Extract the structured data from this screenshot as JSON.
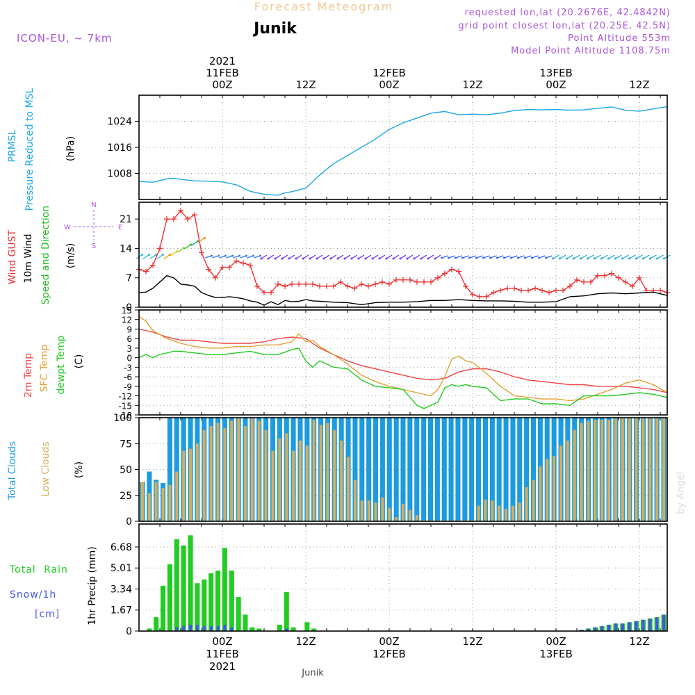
{
  "header": {
    "title": "Forecast Meteogram",
    "location": "Junik",
    "model": "ICON-EU, ~ 7km",
    "requested": "requested lon,lat (20.2676E, 42.4842N)",
    "grid_point": "grid point closest lon,lat (20.25E, 42.5N)",
    "point_altitude": "Point Altitude 553m",
    "model_altitude": "Model Point Altitude 1108.75m",
    "watermark": "by Angel",
    "footer": "Junik"
  },
  "colors": {
    "prmsl": "#1ba7e6",
    "gust": "#ee3333",
    "wind10m": "#000000",
    "wind_label": "#22bb22",
    "temp2m": "#ee4444",
    "sfc": "#e0a030",
    "dewpt": "#22cc22",
    "total_clouds": "#1c9be0",
    "low_clouds": "#d6ae5c",
    "rain": "#22cc22",
    "snow": "#4455ee",
    "purple": "#aa55dd",
    "title": "#f0c890"
  },
  "time_axis": {
    "top_labels": [
      {
        "t": 12,
        "lines": [
          "2021",
          "11FEB",
          "00Z"
        ]
      },
      {
        "t": 24,
        "lines": [
          "12Z"
        ]
      },
      {
        "t": 36,
        "lines": [
          "12FEB",
          "00Z"
        ]
      },
      {
        "t": 48,
        "lines": [
          "12Z"
        ]
      },
      {
        "t": 60,
        "lines": [
          "13FEB",
          "00Z"
        ]
      },
      {
        "t": 72,
        "lines": [
          "12Z"
        ]
      }
    ],
    "bottom_labels": [
      {
        "t": 12,
        "lines": [
          "00Z",
          "11FEB",
          "2021"
        ]
      },
      {
        "t": 24,
        "lines": [
          "12Z"
        ]
      },
      {
        "t": 36,
        "lines": [
          "00Z",
          "12FEB"
        ]
      },
      {
        "t": 48,
        "lines": [
          "12Z"
        ]
      },
      {
        "t": 60,
        "lines": [
          "00Z",
          "13FEB"
        ]
      },
      {
        "t": 72,
        "lines": [
          "12Z"
        ]
      }
    ]
  },
  "chart_data": [
    {
      "type": "line",
      "panel": "pressure",
      "ylabel_lines": [
        "PRMSL",
        "Pressure Reduced to MSL"
      ],
      "unit": "(hPa)",
      "ylim": [
        1000,
        1032
      ],
      "yticks": [
        1008,
        1016,
        1024
      ],
      "series": [
        {
          "name": "PRMSL",
          "x": [
            0,
            2,
            3,
            4,
            5,
            6,
            8,
            10,
            12,
            14,
            16,
            18,
            20,
            21,
            22,
            24,
            26,
            28,
            30,
            32,
            34,
            36,
            38,
            40,
            42,
            44,
            46,
            48,
            50,
            52,
            54,
            56,
            58,
            60,
            62,
            64,
            66,
            68,
            70,
            72,
            74,
            76
          ],
          "y": [
            1005.5,
            1005.3,
            1005.8,
            1006.3,
            1006.5,
            1006.2,
            1005.7,
            1005.6,
            1005.4,
            1004.5,
            1002.5,
            1001.6,
            1001.3,
            1002.0,
            1002.4,
            1003.5,
            1007.5,
            1011,
            1013.5,
            1016,
            1018.5,
            1021.5,
            1023.5,
            1025,
            1026.5,
            1027,
            1026,
            1026.2,
            1026,
            1026.5,
            1027.3,
            1027.6,
            1027.5,
            1027.6,
            1027.4,
            1027.5,
            1028,
            1028.4,
            1027.4,
            1027.1,
            1027.8,
            1028.5
          ]
        }
      ]
    },
    {
      "type": "line",
      "panel": "wind",
      "ylabel_lines": [
        "Wind GUST",
        "10m Wind",
        "Speed and Direction"
      ],
      "unit": "(m/s)",
      "compass": {
        "n": "N",
        "s": "S",
        "w": "W",
        "e": "E"
      },
      "ylim": [
        0,
        25
      ],
      "yticks": [
        0,
        7,
        14,
        21
      ],
      "series": [
        {
          "name": "Wind GUST",
          "x": [
            0,
            1,
            2,
            3,
            4,
            5,
            6,
            7,
            8,
            9,
            10,
            11,
            12,
            13,
            14,
            15,
            16,
            17,
            18,
            19,
            20,
            21,
            22,
            23,
            24,
            25,
            26,
            27,
            28,
            29,
            30,
            31,
            32,
            33,
            34,
            35,
            36,
            37,
            38,
            39,
            40,
            41,
            42,
            43,
            44,
            45,
            46,
            47,
            48,
            49,
            50,
            51,
            52,
            53,
            54,
            55,
            56,
            57,
            58,
            59,
            60,
            61,
            62,
            63,
            64,
            65,
            66,
            67,
            68,
            69,
            70,
            71,
            72,
            73,
            74,
            75,
            76
          ],
          "y": [
            9,
            8.5,
            10,
            14,
            21,
            21,
            23,
            21,
            22,
            13,
            9,
            7,
            9.5,
            9.5,
            11,
            10.5,
            10,
            5,
            3.5,
            3.5,
            5.5,
            5,
            5.5,
            5.5,
            5.5,
            5.5,
            5,
            5,
            5,
            6,
            5,
            4.5,
            5.5,
            5,
            5.5,
            6,
            5.5,
            6.5,
            6.5,
            6.5,
            6,
            6,
            6,
            7,
            8,
            9,
            8.5,
            5,
            3,
            2.5,
            2.5,
            3.5,
            4,
            4.5,
            4.5,
            4,
            4,
            4.5,
            4,
            3.5,
            4,
            4,
            5,
            6.5,
            6,
            6,
            7.5,
            7.5,
            8,
            7,
            6,
            5,
            7,
            4,
            4,
            4,
            3.5
          ]
        },
        {
          "name": "10m Wind",
          "x": [
            0,
            1,
            2,
            3,
            4,
            5,
            6,
            7,
            8,
            9,
            10,
            11,
            12,
            13,
            14,
            15,
            16,
            17,
            18,
            19,
            20,
            21,
            22,
            23,
            24,
            25,
            26,
            28,
            30,
            32,
            34,
            36,
            38,
            40,
            42,
            44,
            46,
            48,
            50,
            52,
            54,
            56,
            58,
            60,
            62,
            64,
            66,
            68,
            70,
            72,
            74,
            76
          ],
          "y": [
            3.5,
            3.6,
            4.5,
            6,
            7.5,
            7,
            5.5,
            5.3,
            5,
            3.5,
            2.8,
            2.3,
            2.3,
            2.5,
            2.3,
            2,
            1.5,
            1.2,
            0.5,
            1.3,
            0.6,
            1.6,
            1.3,
            1.4,
            1.8,
            1.5,
            1.4,
            1.2,
            1.1,
            0.6,
            1.1,
            1.2,
            1.2,
            1.3,
            1.6,
            1.6,
            1.8,
            1.6,
            1.5,
            1.5,
            1.4,
            1.2,
            1.2,
            1.3,
            2.5,
            2.7,
            3.2,
            3.4,
            3.2,
            3.4,
            3.6,
            2.8
          ]
        }
      ]
    },
    {
      "type": "line",
      "panel": "temperature",
      "ylabel_lines": [
        "2m Temp",
        "SFC Temp",
        "dewpt Temp"
      ],
      "unit": "(C)",
      "ylim": [
        -18,
        15
      ],
      "yticks": [
        -18,
        -15,
        -12,
        -9,
        -6,
        -3,
        0,
        3,
        6,
        9,
        12,
        15
      ],
      "series": [
        {
          "name": "2m Temp",
          "x": [
            0,
            2,
            4,
            6,
            8,
            10,
            12,
            14,
            16,
            18,
            20,
            22,
            24,
            26,
            28,
            30,
            32,
            34,
            36,
            38,
            40,
            42,
            44,
            46,
            48,
            50,
            52,
            54,
            56,
            58,
            60,
            62,
            64,
            66,
            68,
            70,
            72,
            74,
            76
          ],
          "y": [
            9,
            8,
            6.5,
            5.5,
            5.5,
            5,
            4.5,
            4.5,
            4.5,
            5,
            6,
            6.5,
            6,
            3,
            1,
            -1,
            -2.5,
            -3.5,
            -4.5,
            -5.5,
            -6.5,
            -7,
            -6.5,
            -4.5,
            -3.5,
            -3.5,
            -4.5,
            -6,
            -7,
            -7.5,
            -8,
            -8.5,
            -8.5,
            -9,
            -9,
            -9,
            -9.5,
            -10,
            -11
          ]
        },
        {
          "name": "SFC Temp",
          "x": [
            0,
            1,
            2,
            4,
            6,
            8,
            10,
            12,
            14,
            16,
            18,
            20,
            22,
            23,
            24,
            25,
            26,
            28,
            30,
            32,
            34,
            36,
            38,
            40,
            42,
            43,
            44,
            45,
            46,
            47,
            48,
            50,
            52,
            54,
            56,
            58,
            60,
            62,
            64,
            66,
            68,
            70,
            72,
            74,
            76
          ],
          "y": [
            13,
            11.5,
            8.5,
            6,
            4.5,
            3.5,
            3,
            3,
            3.5,
            3.5,
            4,
            4,
            5,
            7.5,
            5,
            5.5,
            3.5,
            1,
            -2,
            -5.5,
            -7.5,
            -9,
            -10,
            -11,
            -12,
            -10,
            -6,
            -0.5,
            0.5,
            -1,
            -1.5,
            -5,
            -9,
            -12,
            -12.5,
            -13,
            -13,
            -13.5,
            -13,
            -11.5,
            -10,
            -8,
            -7,
            -8.5,
            -11
          ]
        },
        {
          "name": "dewpt Temp",
          "x": [
            0,
            1,
            2,
            3,
            4,
            5,
            6,
            8,
            10,
            12,
            14,
            16,
            18,
            20,
            22,
            23,
            24,
            25,
            26,
            28,
            30,
            32,
            34,
            36,
            38,
            40,
            41,
            42,
            43,
            44,
            45,
            46,
            47,
            48,
            50,
            52,
            54,
            56,
            58,
            60,
            62,
            64,
            66,
            68,
            70,
            72,
            74,
            76
          ],
          "y": [
            0,
            1,
            0,
            1,
            1.5,
            2,
            2,
            1.5,
            1,
            1,
            1.5,
            2,
            1,
            1,
            2.5,
            3,
            -1,
            -3,
            -1,
            -3,
            -3.5,
            -7,
            -9,
            -9.5,
            -10,
            -15,
            -16,
            -15,
            -14,
            -9.5,
            -8.5,
            -9,
            -8.5,
            -9,
            -9.5,
            -13.5,
            -13,
            -13,
            -14.5,
            -14.5,
            -15,
            -12,
            -12,
            -12,
            -11.5,
            -11,
            -11.5,
            -12.5
          ]
        }
      ]
    },
    {
      "type": "bar",
      "panel": "clouds",
      "ylabel_lines": [
        "Total Clouds",
        "Low Clouds"
      ],
      "unit": "(%)",
      "ylim": [
        0,
        100
      ],
      "yticks": [
        0,
        25,
        50,
        75,
        100
      ],
      "series": [
        {
          "name": "Total Clouds",
          "values": [
            38,
            48,
            40,
            37,
            100,
            100,
            100,
            100,
            100,
            100,
            100,
            100,
            100,
            100,
            100,
            100,
            100,
            100,
            100,
            100,
            100,
            100,
            100,
            100,
            100,
            100,
            100,
            100,
            100,
            100,
            100,
            100,
            100,
            100,
            100,
            100,
            100,
            100,
            100,
            100,
            100,
            100,
            100,
            100,
            100,
            100,
            100,
            100,
            100,
            100,
            100,
            100,
            100,
            100,
            100,
            100,
            100,
            100,
            100,
            100,
            100,
            100,
            100,
            100,
            100,
            100,
            100,
            100,
            100,
            100,
            100,
            100,
            100,
            100,
            100,
            100,
            100
          ]
        },
        {
          "name": "Low Clouds",
          "values": [
            38,
            27,
            38,
            32,
            35,
            48,
            68,
            70,
            75,
            88,
            92,
            95,
            90,
            97,
            100,
            92,
            100,
            97,
            88,
            68,
            80,
            85,
            68,
            78,
            73,
            98,
            93,
            95,
            88,
            78,
            62,
            40,
            20,
            20,
            18,
            23,
            13,
            4,
            17,
            11,
            6,
            1,
            1,
            1,
            1,
            1,
            1,
            1,
            1,
            15,
            21,
            20,
            15,
            12,
            15,
            18,
            33,
            40,
            53,
            60,
            63,
            73,
            78,
            88,
            95,
            97,
            98,
            98,
            98,
            100,
            100,
            100,
            100,
            100,
            100,
            100,
            100
          ]
        }
      ]
    },
    {
      "type": "bar",
      "panel": "precip",
      "ylabel_lines": [
        "1hr Precip (mm)"
      ],
      "side_labels": [
        "Total Rain",
        "Snow/1h",
        "[cm]"
      ],
      "ylim": [
        0,
        8.5
      ],
      "yticks": [
        0,
        1.67,
        3.34,
        5.01,
        6.68
      ],
      "series": [
        {
          "name": "Total Rain",
          "values": [
            0,
            0.2,
            1.1,
            3.6,
            5.3,
            7.3,
            6.8,
            7.6,
            3.8,
            4.1,
            4.6,
            4.8,
            6.6,
            4.8,
            2.7,
            1.3,
            0.3,
            0.2,
            0,
            0,
            0.5,
            3.1,
            0.3,
            0,
            0.7,
            0.2,
            0,
            0,
            0,
            0,
            0,
            0,
            0,
            0,
            0,
            0,
            0,
            0,
            0,
            0,
            0,
            0,
            0,
            0,
            0,
            0,
            0,
            0,
            0,
            0,
            0,
            0,
            0,
            0,
            0,
            0,
            0,
            0,
            0,
            0,
            0,
            0,
            0,
            0,
            0.1,
            0.2,
            0.3,
            0.4,
            0.5,
            0.6,
            0.6,
            0.7,
            0.8,
            0.9,
            1.0,
            1.1,
            1.3
          ]
        },
        {
          "name": "Snow/1h",
          "values": [
            0,
            0,
            0,
            0,
            0,
            0.3,
            0.4,
            0.5,
            0.5,
            0.4,
            0.4,
            0.4,
            0.5,
            0.3,
            0,
            0,
            0,
            0,
            0,
            0,
            0,
            0.2,
            0,
            0,
            0,
            0,
            0,
            0,
            0,
            0,
            0,
            0,
            0,
            0,
            0,
            0,
            0,
            0,
            0,
            0,
            0,
            0,
            0,
            0,
            0,
            0,
            0,
            0,
            0,
            0,
            0,
            0,
            0,
            0,
            0,
            0,
            0,
            0,
            0,
            0,
            0,
            0,
            0,
            0,
            0.1,
            0.2,
            0.3,
            0.4,
            0.5,
            0.6,
            0.6,
            0.7,
            0.8,
            0.9,
            1.0,
            1.1,
            1.3
          ]
        }
      ]
    }
  ]
}
